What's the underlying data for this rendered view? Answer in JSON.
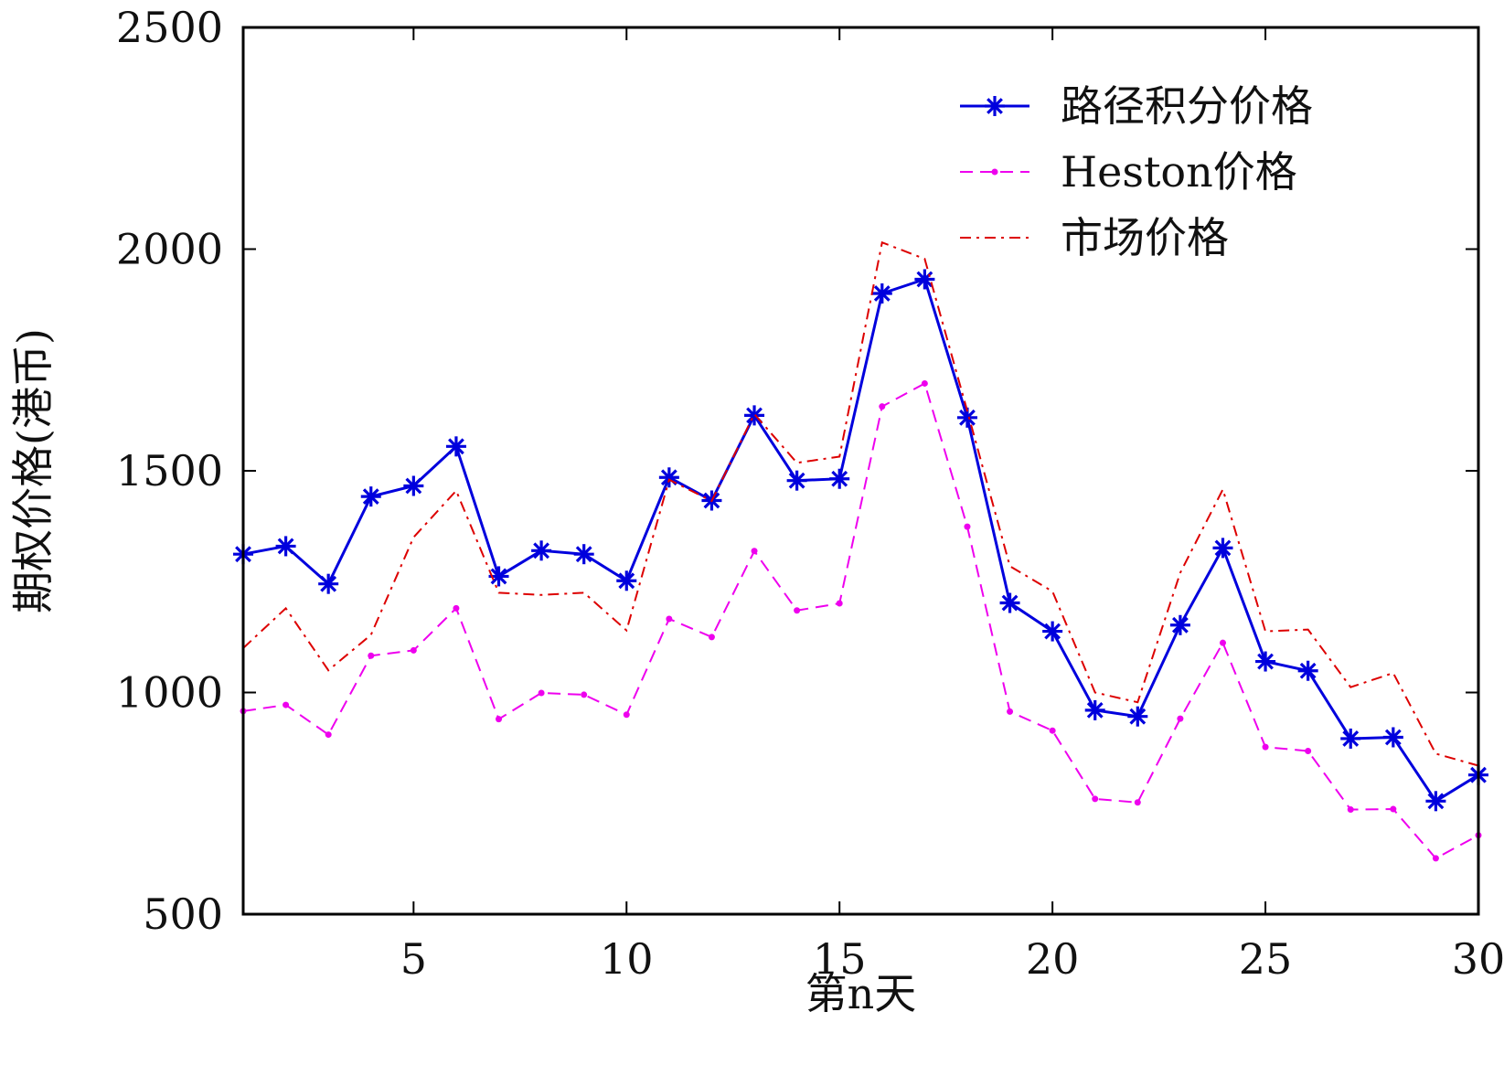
{
  "chart_data": {
    "type": "line",
    "title": "",
    "xlabel": "第n天",
    "ylabel": "期权价格(港币)",
    "xlim": [
      1,
      30
    ],
    "ylim": [
      500,
      2500
    ],
    "xticks": [
      5,
      10,
      15,
      20,
      25,
      30
    ],
    "yticks": [
      500,
      1000,
      1500,
      2000,
      2500
    ],
    "grid": false,
    "legend_position": "top-right",
    "x": [
      1,
      2,
      3,
      4,
      5,
      6,
      7,
      8,
      9,
      10,
      11,
      12,
      13,
      14,
      15,
      16,
      17,
      18,
      19,
      20,
      21,
      22,
      23,
      24,
      25,
      26,
      27,
      28,
      29,
      30
    ],
    "series": [
      {
        "name": "路径积分价格",
        "color": "#0000dd",
        "style": "solid",
        "marker": "asterisk",
        "values": [
          1312,
          1330,
          1245,
          1442,
          1466,
          1555,
          1262,
          1320,
          1312,
          1252,
          1485,
          1433,
          1625,
          1478,
          1482,
          1900,
          1932,
          1620,
          1202,
          1138,
          960,
          946,
          1152,
          1326,
          1070,
          1049,
          896,
          899,
          755,
          814
        ]
      },
      {
        "name": "Heston价格",
        "color": "#ee00ee",
        "style": "dashed",
        "marker": "dot",
        "values": [
          958,
          972,
          905,
          1083,
          1095,
          1190,
          940,
          999,
          995,
          950,
          1166,
          1125,
          1319,
          1185,
          1201,
          1645,
          1697,
          1374,
          957,
          914,
          760,
          752,
          941,
          1112,
          877,
          868,
          736,
          737,
          626,
          678
        ]
      },
      {
        "name": "市场价格",
        "color": "#dd0000",
        "style": "dashdot",
        "marker": "none",
        "values": [
          1100,
          1190,
          1050,
          1130,
          1350,
          1455,
          1225,
          1220,
          1225,
          1140,
          1480,
          1432,
          1628,
          1518,
          1532,
          2015,
          1978,
          1635,
          1285,
          1228,
          1000,
          978,
          1270,
          1458,
          1138,
          1142,
          1012,
          1044,
          862,
          835
        ]
      }
    ]
  }
}
